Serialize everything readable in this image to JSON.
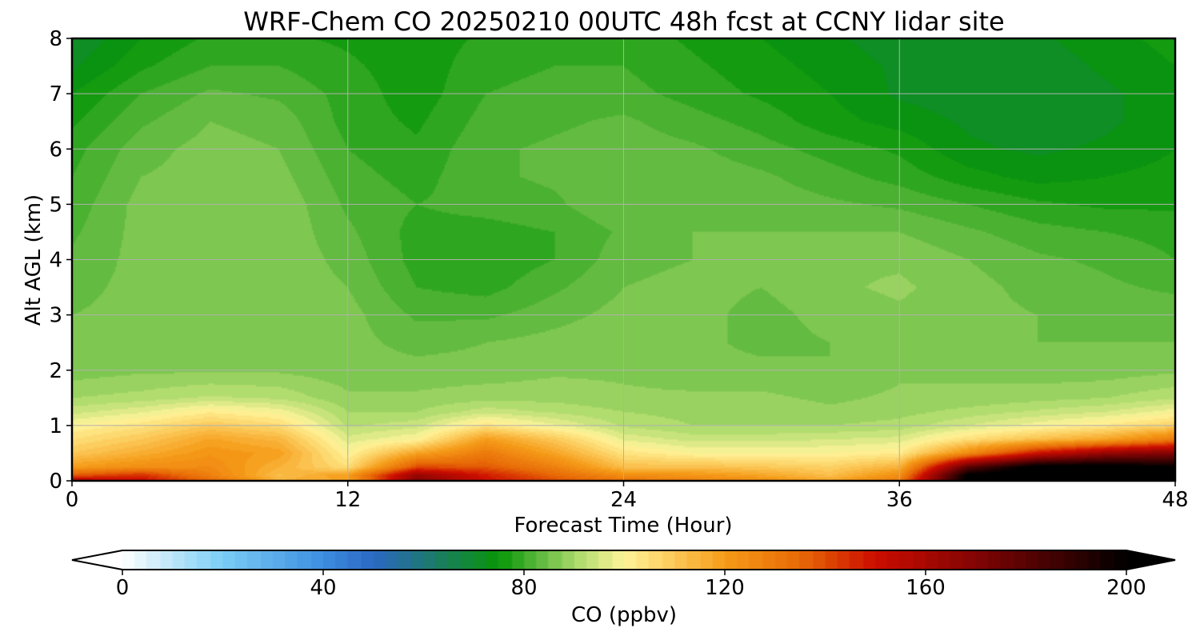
{
  "chart_data": {
    "type": "heatmap",
    "title": "WRF-Chem CO  20250210 00UTC 48h fcst at CCNY lidar site",
    "xlabel": "Forecast Time (Hour)",
    "ylabel": "Alt AGL (km)",
    "xlim": [
      0,
      48
    ],
    "ylim": [
      0,
      8
    ],
    "x_ticks": [
      "0",
      "12",
      "24",
      "36",
      "48"
    ],
    "y_ticks": [
      "0",
      "1",
      "2",
      "3",
      "4",
      "5",
      "6",
      "7",
      "8"
    ],
    "grid": true,
    "x": [
      0,
      3,
      6,
      9,
      12,
      15,
      18,
      21,
      24,
      27,
      30,
      33,
      36,
      39,
      42,
      45,
      48
    ],
    "y": [
      0,
      0.1,
      0.25,
      0.5,
      0.75,
      1,
      1.25,
      1.5,
      2,
      2.5,
      3,
      3.5,
      4,
      4.5,
      5,
      5.5,
      6,
      6.5,
      7,
      7.5,
      8
    ],
    "z": [
      [
        160,
        152,
        135,
        115,
        118,
        170,
        150,
        140,
        132,
        128,
        124,
        118,
        130,
        205,
        205,
        205,
        205
      ],
      [
        138,
        145,
        128,
        112,
        120,
        165,
        148,
        135,
        124,
        122,
        118,
        112,
        124,
        202,
        210,
        210,
        210
      ],
      [
        120,
        124,
        125,
        115,
        105,
        140,
        138,
        128,
        112,
        112,
        110,
        108,
        115,
        180,
        205,
        205,
        200
      ],
      [
        110,
        116,
        122,
        119,
        100,
        118,
        130,
        118,
        104,
        100,
        100,
        100,
        102,
        125,
        150,
        165,
        170
      ],
      [
        105,
        110,
        118,
        114,
        96,
        100,
        120,
        110,
        97,
        94,
        94,
        95,
        96,
        105,
        112,
        118,
        130
      ],
      [
        100,
        104,
        110,
        106,
        92,
        94,
        104,
        98,
        92,
        90,
        90,
        90,
        91,
        95,
        99,
        103,
        108
      ],
      [
        94,
        97,
        102,
        99,
        90,
        90,
        94,
        92,
        90,
        89,
        89,
        88,
        89,
        91,
        93,
        95,
        99
      ],
      [
        90,
        91,
        93,
        92,
        88,
        88,
        89,
        89,
        88,
        88,
        88,
        87,
        88,
        88,
        89,
        90,
        92
      ],
      [
        86,
        87,
        87,
        87,
        86,
        86,
        86,
        87,
        87,
        86,
        86,
        85,
        87,
        87,
        86,
        86,
        87
      ],
      [
        86,
        86,
        87,
        87,
        86,
        84,
        85,
        86,
        87,
        86,
        84,
        85,
        86,
        86,
        85,
        85,
        85
      ],
      [
        85,
        86,
        87,
        87,
        86,
        82,
        82,
        84,
        86,
        86,
        84,
        86,
        87,
        86,
        85,
        84,
        84
      ],
      [
        84,
        86,
        87,
        87,
        85,
        80,
        79,
        82,
        85,
        86,
        85,
        87,
        88,
        86,
        84,
        83,
        82
      ],
      [
        83,
        86,
        87,
        87,
        84,
        79,
        78,
        80,
        84,
        85,
        86,
        87,
        87,
        85,
        83,
        82,
        80
      ],
      [
        82,
        86,
        87,
        87,
        83,
        79,
        79,
        80,
        83,
        85,
        85,
        85,
        85,
        83,
        81,
        80,
        79
      ],
      [
        81,
        86,
        87,
        87,
        82,
        80,
        81,
        82,
        85,
        85,
        84,
        83,
        82,
        80,
        78,
        77,
        77
      ],
      [
        80,
        85,
        86,
        86,
        81,
        79,
        82,
        83,
        84,
        84,
        83,
        81,
        79,
        76,
        74,
        75,
        76
      ],
      [
        79,
        84,
        86,
        85,
        80,
        78,
        82,
        83,
        84,
        83,
        81,
        79,
        77,
        73,
        72,
        73,
        75
      ],
      [
        77,
        82,
        85,
        84,
        79,
        77,
        81,
        82,
        83,
        81,
        79,
        76,
        74,
        72,
        71,
        72,
        74
      ],
      [
        75,
        80,
        83,
        82,
        79,
        76,
        80,
        81,
        81,
        79,
        77,
        75,
        72,
        71,
        71,
        72,
        74
      ],
      [
        72,
        77,
        80,
        80,
        78,
        76,
        79,
        80,
        80,
        78,
        76,
        74,
        72,
        71,
        71,
        73,
        75
      ],
      [
        70,
        75,
        78,
        78,
        77,
        76,
        78,
        79,
        79,
        77,
        75,
        73,
        71,
        71,
        72,
        74,
        76
      ]
    ],
    "colorbar": {
      "label": "CO  (ppbv)",
      "ticks": [
        "0",
        "40",
        "80",
        "120",
        "160",
        "200"
      ],
      "min": 0,
      "max": 200,
      "extend": "both",
      "colormap": [
        [
          0,
          "#ffffff"
        ],
        [
          20,
          "#7acdf5"
        ],
        [
          40,
          "#3d8ee0"
        ],
        [
          50,
          "#2b68c4"
        ],
        [
          62,
          "#1d7a6a"
        ],
        [
          75,
          "#089608"
        ],
        [
          83,
          "#5cb83c"
        ],
        [
          90,
          "#a6d868"
        ],
        [
          100,
          "#fff59a"
        ],
        [
          110,
          "#fcc858"
        ],
        [
          120,
          "#f59b18"
        ],
        [
          135,
          "#e86a06"
        ],
        [
          150,
          "#cc0c00"
        ],
        [
          170,
          "#820404"
        ],
        [
          190,
          "#2e0101"
        ],
        [
          200,
          "#000000"
        ]
      ]
    }
  }
}
